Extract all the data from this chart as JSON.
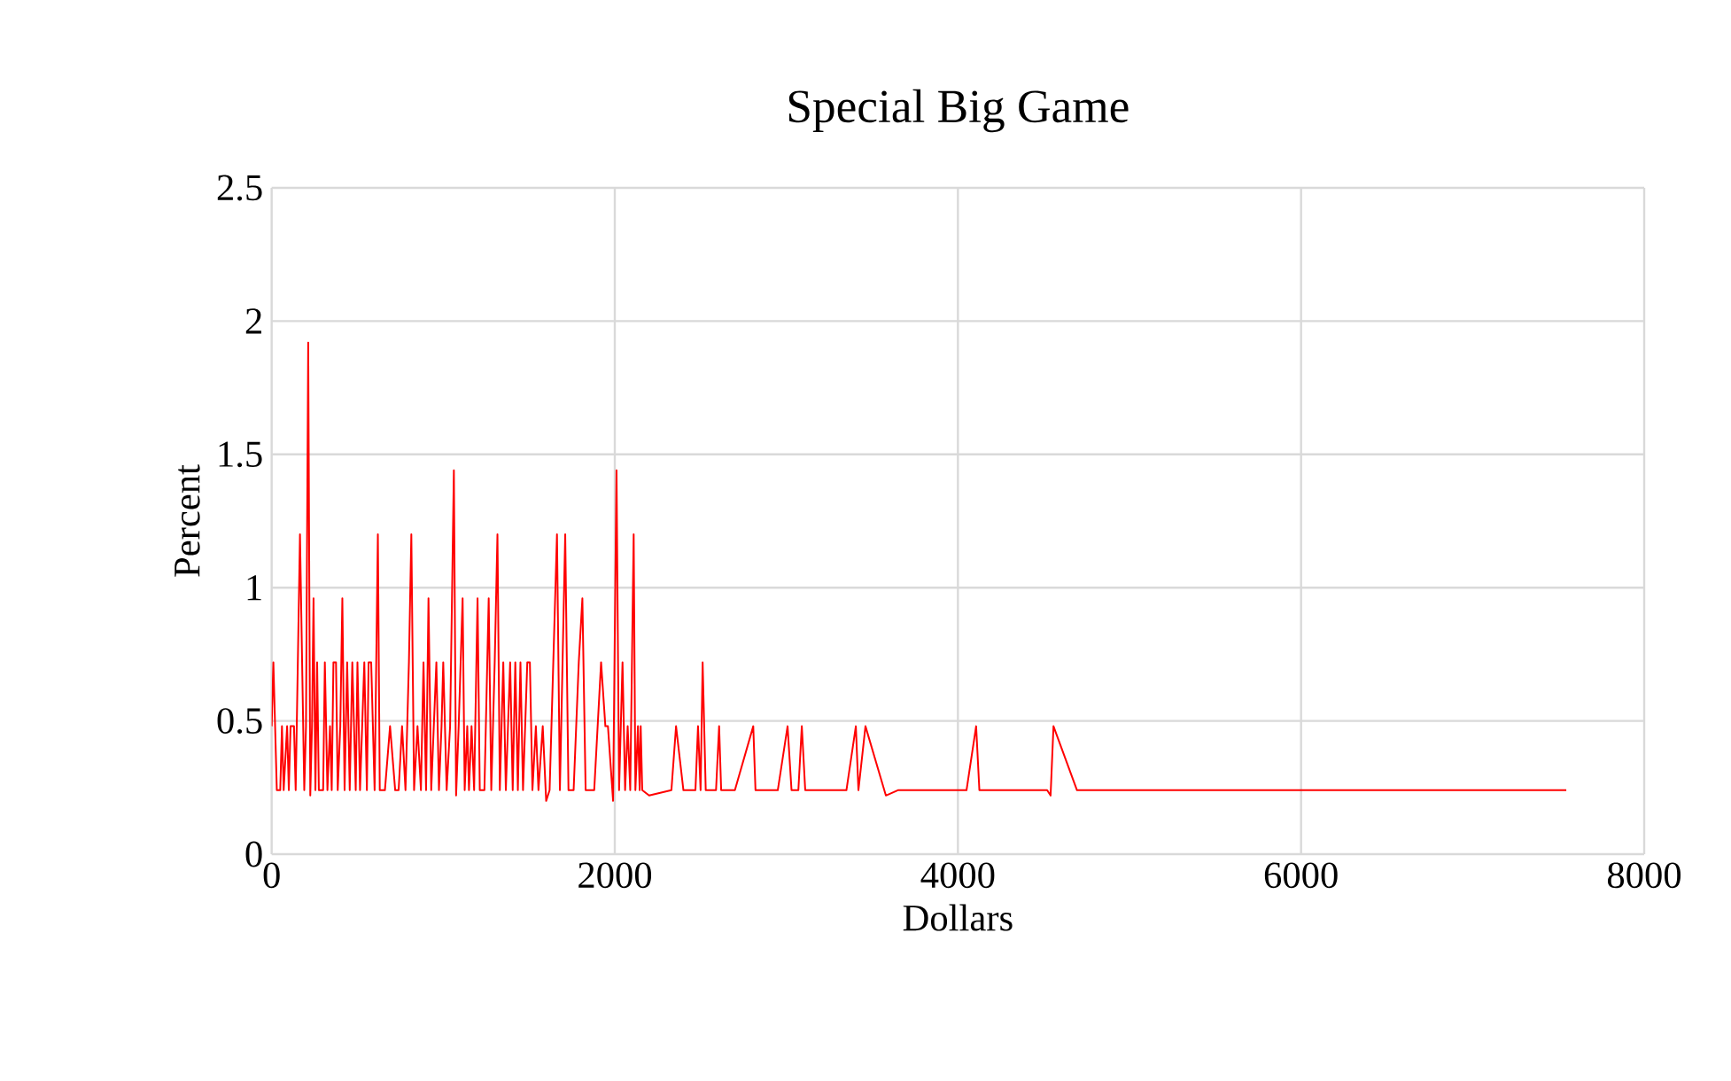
{
  "chart_data": {
    "type": "line",
    "title": "Special Big Game",
    "xlabel": "Dollars",
    "ylabel": "Percent",
    "xlim": [
      0,
      8000
    ],
    "xticks": [
      0,
      2000,
      4000,
      6000,
      8000
    ],
    "ylim": [
      0,
      2.5
    ],
    "yticks": [
      0,
      0.5,
      1,
      1.5,
      2,
      2.5
    ],
    "grid": true,
    "x": [
      0,
      10,
      30,
      50,
      60,
      70,
      90,
      100,
      110,
      130,
      140,
      165,
      190,
      200,
      213,
      225,
      235,
      244,
      255,
      265,
      275,
      300,
      310,
      325,
      340,
      350,
      360,
      375,
      385,
      400,
      412,
      425,
      440,
      455,
      470,
      490,
      500,
      515,
      540,
      555,
      565,
      580,
      600,
      619,
      630,
      660,
      690,
      720,
      740,
      760,
      780,
      800,
      814,
      830,
      850,
      870,
      885,
      900,
      914,
      930,
      960,
      975,
      990,
      1000,
      1020,
      1040,
      1062,
      1075,
      1090,
      1113,
      1125,
      1140,
      1150,
      1165,
      1180,
      1200,
      1213,
      1240,
      1265,
      1280,
      1300,
      1316,
      1330,
      1350,
      1365,
      1390,
      1405,
      1420,
      1435,
      1450,
      1465,
      1490,
      1505,
      1520,
      1540,
      1555,
      1580,
      1600,
      1620,
      1663,
      1680,
      1711,
      1730,
      1760,
      1790,
      1811,
      1830,
      1880,
      1920,
      1945,
      1960,
      1990,
      2010,
      2025,
      2045,
      2060,
      2075,
      2090,
      2110,
      2120,
      2135,
      2145,
      2151,
      2160,
      2200,
      2330,
      2357,
      2400,
      2470,
      2485,
      2500,
      2512,
      2530,
      2590,
      2608,
      2620,
      2700,
      2807,
      2820,
      2950,
      3007,
      3030,
      3070,
      3090,
      3110,
      3350,
      3405,
      3420,
      3461,
      3580,
      3650,
      4050,
      4106,
      4125,
      4520,
      4540,
      4557,
      4694,
      7546
    ],
    "series": [
      {
        "color": "#ff0000",
        "values": [
          0.48,
          0.72,
          0.24,
          0.24,
          0.48,
          0.24,
          0.48,
          0.24,
          0.48,
          0.48,
          0.24,
          1.2,
          0.24,
          0.48,
          1.92,
          0.22,
          0.48,
          0.96,
          0.24,
          0.72,
          0.24,
          0.24,
          0.72,
          0.24,
          0.48,
          0.24,
          0.72,
          0.72,
          0.24,
          0.48,
          0.96,
          0.24,
          0.72,
          0.24,
          0.72,
          0.24,
          0.72,
          0.24,
          0.72,
          0.24,
          0.72,
          0.72,
          0.24,
          1.2,
          0.24,
          0.24,
          0.48,
          0.24,
          0.24,
          0.48,
          0.24,
          0.72,
          1.2,
          0.24,
          0.48,
          0.24,
          0.72,
          0.24,
          0.96,
          0.24,
          0.72,
          0.24,
          0.48,
          0.72,
          0.24,
          0.48,
          1.44,
          0.22,
          0.48,
          0.96,
          0.24,
          0.48,
          0.24,
          0.48,
          0.24,
          0.96,
          0.24,
          0.24,
          0.96,
          0.24,
          0.72,
          1.2,
          0.24,
          0.72,
          0.24,
          0.72,
          0.24,
          0.72,
          0.24,
          0.72,
          0.24,
          0.72,
          0.72,
          0.24,
          0.48,
          0.24,
          0.48,
          0.2,
          0.24,
          1.2,
          0.24,
          1.2,
          0.24,
          0.24,
          0.72,
          0.96,
          0.24,
          0.24,
          0.72,
          0.48,
          0.48,
          0.2,
          1.44,
          0.24,
          0.72,
          0.24,
          0.48,
          0.24,
          1.2,
          0.24,
          0.48,
          0.24,
          0.48,
          0.24,
          0.22,
          0.24,
          0.48,
          0.24,
          0.24,
          0.48,
          0.24,
          0.72,
          0.24,
          0.24,
          0.48,
          0.24,
          0.24,
          0.48,
          0.24,
          0.24,
          0.48,
          0.24,
          0.24,
          0.48,
          0.24,
          0.24,
          0.48,
          0.24,
          0.48,
          0.22,
          0.24,
          0.24,
          0.48,
          0.24,
          0.24,
          0.22,
          0.48,
          0.24,
          0.24
        ]
      }
    ]
  }
}
